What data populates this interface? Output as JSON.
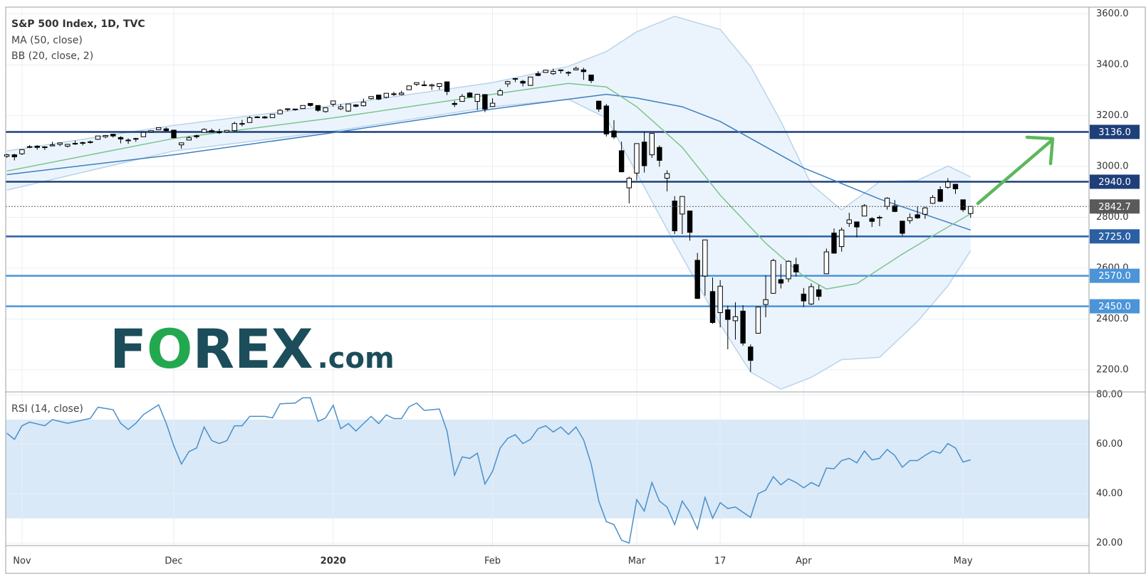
{
  "logo": [
    "F",
    "O",
    "REX",
    ".com"
  ],
  "chart_data": [
    {
      "type": "candlestick",
      "title": "S&P 500 Index, 1D, TVC",
      "x": [
        -2,
        -1,
        0,
        1,
        2,
        3,
        4,
        5,
        6,
        7,
        8,
        9,
        10,
        11,
        12,
        13,
        14,
        15,
        16,
        17,
        18,
        19,
        20,
        21,
        22,
        23,
        24,
        25,
        26,
        27,
        28,
        29,
        30,
        31,
        32,
        33,
        34,
        35,
        36,
        37,
        38,
        39,
        40,
        41,
        42,
        43,
        44,
        45,
        46,
        47,
        48,
        49,
        50,
        51,
        52,
        53,
        54,
        55,
        56,
        57,
        58,
        59,
        60,
        61,
        62,
        63,
        64,
        65,
        66,
        67,
        68,
        69,
        70,
        71,
        72,
        73,
        74,
        75,
        76,
        77,
        78,
        79,
        80,
        81,
        82,
        83,
        84,
        85,
        86,
        87,
        88,
        89,
        90,
        91,
        92,
        93,
        94,
        95,
        96,
        97,
        98,
        99,
        100,
        101,
        102,
        103,
        104,
        105,
        106,
        107,
        108,
        109,
        110,
        111,
        112,
        113,
        114,
        115,
        116,
        117,
        118,
        119,
        120,
        121,
        122,
        123,
        124,
        125
      ],
      "open": [
        3040,
        3046,
        3050,
        3078,
        3080,
        3076,
        3081,
        3087,
        3080,
        3089,
        3091,
        3095,
        3107,
        3117,
        3127,
        3114,
        3101,
        3108,
        3117,
        3136,
        3145,
        3148,
        3143,
        3085,
        3104,
        3121,
        3134,
        3141,
        3136,
        3136,
        3141,
        3167,
        3173,
        3195,
        3195,
        3192,
        3207,
        3227,
        3226,
        3228,
        3248,
        3240,
        3216,
        3245,
        3227,
        3218,
        3242,
        3239,
        3267,
        3281,
        3272,
        3286,
        3283,
        3302,
        3323,
        3321,
        3317,
        3315,
        3333,
        3248,
        3256,
        3289,
        3256,
        3283,
        3236,
        3281,
        3325,
        3345,
        3335,
        3319,
        3365,
        3370,
        3365,
        3378,
        3370,
        3380,
        3380,
        3360,
        3257,
        3238,
        3140,
        3062,
        2916,
        2974,
        3096,
        3046,
        3075,
        2954,
        2864,
        2813,
        2825,
        2631,
        2569,
        2508,
        2425,
        2436,
        2393,
        2431,
        2290,
        2344,
        2457,
        2501,
        2555,
        2558,
        2614,
        2498,
        2459,
        2515,
        2578,
        2738,
        2685,
        2776,
        2782,
        2805,
        2795,
        2799,
        2843,
        2845,
        2785,
        2787,
        2810,
        2812,
        2855,
        2909,
        2918,
        2930,
        2869,
        2815
      ],
      "high": [
        3050,
        3050,
        3067,
        3084,
        3084,
        3080,
        3097,
        3094,
        3088,
        3102,
        3098,
        3102,
        3120,
        3124,
        3128,
        3119,
        3111,
        3113,
        3134,
        3142,
        3154,
        3154,
        3144,
        3094,
        3120,
        3125,
        3150,
        3149,
        3148,
        3143,
        3176,
        3183,
        3198,
        3198,
        3199,
        3205,
        3226,
        3227,
        3226,
        3240,
        3248,
        3240,
        3231,
        3258,
        3246,
        3246,
        3245,
        3267,
        3276,
        3282,
        3288,
        3294,
        3298,
        3317,
        3330,
        3337,
        3326,
        3327,
        3334,
        3258,
        3285,
        3293,
        3286,
        3283,
        3268,
        3306,
        3337,
        3348,
        3341,
        3352,
        3375,
        3381,
        3385,
        3381,
        3375,
        3393,
        3389,
        3360,
        3259,
        3246,
        3182,
        3098,
        2960,
        3091,
        3137,
        3130,
        3083,
        2985,
        2883,
        2882,
        2825,
        2660,
        2711,
        2563,
        2553,
        2453,
        2466,
        2454,
        2300,
        2449,
        2571,
        2637,
        2616,
        2631,
        2641,
        2522,
        2540,
        2534,
        2677,
        2756,
        2760,
        2818,
        2782,
        2852,
        2801,
        2807,
        2879,
        2868,
        2785,
        2815,
        2844,
        2842,
        2887,
        2922,
        2954,
        2930,
        2869,
        2844
      ],
      "low": [
        3034,
        3024,
        3045,
        3072,
        3066,
        3065,
        3080,
        3080,
        3075,
        3085,
        3083,
        3090,
        3105,
        3111,
        3114,
        3091,
        3089,
        3097,
        3117,
        3133,
        3143,
        3137,
        3110,
        3070,
        3103,
        3110,
        3134,
        3133,
        3128,
        3134,
        3138,
        3158,
        3173,
        3191,
        3188,
        3192,
        3207,
        3217,
        3220,
        3227,
        3235,
        3215,
        3212,
        3235,
        3222,
        3215,
        3233,
        3236,
        3263,
        3261,
        3268,
        3277,
        3280,
        3302,
        3317,
        3316,
        3301,
        3302,
        3281,
        3234,
        3256,
        3271,
        3222,
        3214,
        3235,
        3281,
        3313,
        3332,
        3315,
        3317,
        3355,
        3369,
        3360,
        3366,
        3356,
        3378,
        3341,
        3328,
        3215,
        3118,
        3108,
        2977,
        2855,
        2946,
        2976,
        3034,
        2999,
        2902,
        2734,
        2734,
        2708,
        2478,
        2492,
        2381,
        2367,
        2281,
        2319,
        2295,
        2192,
        2344,
        2407,
        2501,
        2520,
        2545,
        2567,
        2447,
        2455,
        2473,
        2578,
        2657,
        2665,
        2762,
        2721,
        2805,
        2762,
        2765,
        2830,
        2820,
        2728,
        2775,
        2794,
        2794,
        2853,
        2860,
        2912,
        2892,
        2821,
        2798
      ],
      "close": [
        3046,
        3038,
        3066,
        3078,
        3075,
        3077,
        3085,
        3093,
        3087,
        3091,
        3094,
        3097,
        3120,
        3122,
        3120,
        3108,
        3104,
        3110,
        3134,
        3141,
        3153,
        3141,
        3113,
        3093,
        3113,
        3117,
        3146,
        3136,
        3133,
        3142,
        3169,
        3169,
        3192,
        3192,
        3191,
        3205,
        3221,
        3224,
        3224,
        3240,
        3240,
        3221,
        3231,
        3258,
        3235,
        3246,
        3237,
        3253,
        3275,
        3265,
        3288,
        3283,
        3289,
        3317,
        3330,
        3321,
        3321,
        3326,
        3295,
        3244,
        3276,
        3273,
        3284,
        3226,
        3249,
        3298,
        3334,
        3346,
        3328,
        3352,
        3358,
        3379,
        3374,
        3380,
        3370,
        3386,
        3373,
        3338,
        3226,
        3128,
        3116,
        2979,
        2954,
        3090,
        3003,
        3130,
        3024,
        2972,
        2747,
        2882,
        2741,
        2481,
        2711,
        2386,
        2529,
        2398,
        2409,
        2305,
        2237,
        2447,
        2476,
        2630,
        2541,
        2627,
        2585,
        2471,
        2527,
        2489,
        2664,
        2659,
        2750,
        2790,
        2762,
        2846,
        2784,
        2800,
        2875,
        2823,
        2737,
        2799,
        2798,
        2837,
        2878,
        2863,
        2939,
        2912,
        2830,
        2843
      ],
      "up_color": "#ffffff",
      "down_color": "#000000",
      "series": [
        {
          "name": "MA (50, close)",
          "color": "#3d7fc1",
          "x": [
            -2,
            20,
            41,
            62,
            77,
            81,
            87,
            92,
            103,
            113,
            125
          ],
          "values": [
            2968,
            3046,
            3133,
            3226,
            3284,
            3269,
            3235,
            3177,
            2994,
            2872,
            2750
          ]
        },
        {
          "color": "#7cc490",
          "x": [
            -2,
            20,
            41,
            62,
            72,
            77,
            81,
            87,
            92,
            98,
            103,
            106,
            110,
            116,
            120,
            125
          ],
          "values": [
            2982,
            3110,
            3191,
            3284,
            3327,
            3313,
            3235,
            3075,
            2887,
            2698,
            2568,
            2518,
            2539,
            2655,
            2727,
            2814
          ]
        }
      ],
      "band": {
        "name": "BB (20, close, 2)",
        "color": "#b9d3ea",
        "fill": "#e9f3fc",
        "x": [
          -2,
          20,
          41,
          62,
          72,
          77,
          81,
          86,
          92,
          96,
          100,
          104,
          108,
          113,
          118,
          122,
          125
        ],
        "upper": [
          3061,
          3162,
          3240,
          3330,
          3394,
          3452,
          3530,
          3591,
          3539,
          3394,
          3177,
          2930,
          2829,
          2940,
          2945,
          3002,
          2959
        ],
        "lower": [
          2907,
          3061,
          3139,
          3235,
          3264,
          3191,
          2974,
          2698,
          2379,
          2191,
          2124,
          2170,
          2240,
          2249,
          2390,
          2530,
          2669
        ]
      },
      "levels": [
        {
          "value": 3136,
          "label": "3136.0",
          "color": "#1e3f7a"
        },
        {
          "value": 2940,
          "label": "2940.0",
          "color": "#1e3f7a"
        },
        {
          "value": 2725,
          "label": "2725.0",
          "color": "#2a5fa3"
        },
        {
          "value": 2570,
          "label": "2570.0",
          "color": "#4b94d8"
        },
        {
          "value": 2450,
          "label": "2450.0",
          "color": "#4b94d8"
        }
      ],
      "last_price": {
        "value": 2842.7,
        "color": "#5a5a5a"
      },
      "xlim": [
        -2.15,
        140.6
      ],
      "ylim": [
        2113,
        3627
      ],
      "xticks": [
        {
          "value": 0,
          "label": "Nov"
        },
        {
          "value": 20,
          "label": "Dec"
        },
        {
          "value": 41,
          "label": "2020"
        },
        {
          "value": 62,
          "label": "Feb"
        },
        {
          "value": 81,
          "label": "Mar"
        },
        {
          "value": 92,
          "label": "17"
        },
        {
          "value": 103,
          "label": "Apr"
        },
        {
          "value": 124,
          "label": "May"
        }
      ],
      "yticks": [
        {
          "value": 2200,
          "label": "2200.0"
        },
        {
          "value": 2400,
          "label": "2400.0"
        },
        {
          "value": 2600,
          "label": "2600.0"
        },
        {
          "value": 2800,
          "label": "2800.0"
        },
        {
          "value": 3000,
          "label": "3000.0"
        },
        {
          "value": 3200,
          "label": "3200.0"
        },
        {
          "value": 3400,
          "label": "3400.0"
        },
        {
          "value": 3600,
          "label": "3600.0"
        }
      ],
      "grid": true
    },
    {
      "type": "line",
      "title": "RSI (14, close)",
      "color": "#4a8fc9",
      "x": [
        -2,
        -1,
        0,
        1,
        3,
        4,
        6,
        9,
        10,
        12,
        13,
        14,
        15,
        16,
        18,
        19,
        20,
        21,
        22,
        23,
        24,
        25,
        26,
        27,
        28,
        29,
        30,
        32,
        33,
        34,
        36,
        37,
        38,
        39,
        40,
        41,
        42,
        43,
        44,
        45,
        46,
        47,
        48,
        49,
        50,
        51,
        52,
        53,
        55,
        56,
        57,
        58,
        59,
        60,
        61,
        62,
        63,
        64,
        65,
        66,
        67,
        68,
        69,
        70,
        71,
        72,
        73,
        74,
        75,
        76,
        77,
        78,
        79,
        80,
        81,
        82,
        83,
        84,
        85,
        86,
        87,
        88,
        89,
        90,
        91,
        92,
        93,
        94,
        95,
        96,
        97,
        98,
        99,
        100,
        101,
        102,
        103,
        104,
        105,
        106,
        107,
        108,
        109,
        110,
        111,
        112,
        113,
        114,
        115,
        116,
        117,
        118,
        119,
        120,
        121,
        122,
        123,
        124,
        125
      ],
      "values": [
        64.5,
        62,
        67.5,
        69,
        67.5,
        70,
        68.5,
        70.5,
        75,
        74,
        68.5,
        66,
        68.5,
        72,
        76,
        68.5,
        59.4,
        52,
        57,
        58.5,
        67,
        61.5,
        60.3,
        61.5,
        67.5,
        67.5,
        71.3,
        71.3,
        70.7,
        76.4,
        76.7,
        78.8,
        78.8,
        69.3,
        70.7,
        75.8,
        66.3,
        68.4,
        65.4,
        68.4,
        71.3,
        68.4,
        71.9,
        70.4,
        70.4,
        75.2,
        76.7,
        73.7,
        74.3,
        65.4,
        47.5,
        54.9,
        54.3,
        56.4,
        43.9,
        49,
        58.5,
        62.4,
        63.9,
        60.3,
        62,
        66.3,
        67.5,
        65,
        67,
        64,
        67,
        61.8,
        52,
        37,
        28.7,
        27.5,
        21.2,
        20,
        37.6,
        33,
        44.5,
        37,
        34.6,
        27.5,
        37,
        32.5,
        25.7,
        38.5,
        30.1,
        36.4,
        34,
        34.6,
        32.5,
        30.4,
        40,
        41.5,
        46.9,
        43.6,
        46,
        44.5,
        42.4,
        44.5,
        43,
        50.4,
        50.1,
        53.4,
        54.3,
        52.5,
        57.3,
        53.7,
        54.3,
        57.9,
        55.5,
        50.7,
        53.4,
        53.4,
        55.5,
        57.3,
        56.4,
        60.3,
        58.5,
        52.8,
        53.7
      ],
      "band": [
        30,
        70
      ],
      "band_color": "#d9e9f8",
      "xlim": [
        -2.15,
        140.6
      ],
      "ylim": [
        19,
        81.2
      ],
      "yticks": [
        {
          "value": 20,
          "label": "20.00"
        },
        {
          "value": 40,
          "label": "40.00"
        },
        {
          "value": 60,
          "label": "60.00"
        },
        {
          "value": 80,
          "label": "80.00"
        }
      ],
      "grid": true
    }
  ]
}
